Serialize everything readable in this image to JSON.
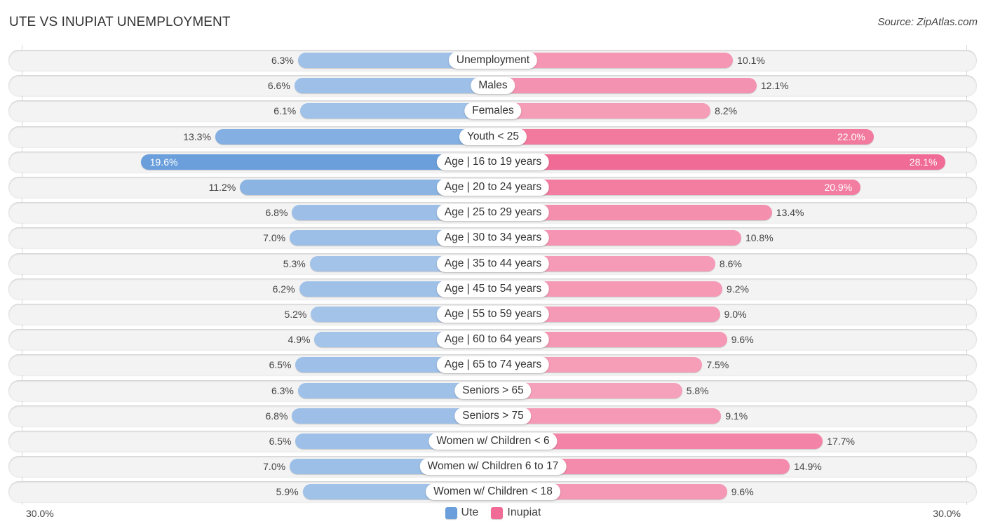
{
  "title": "UTE VS INUPIAT UNEMPLOYMENT",
  "source": "Source: ZipAtlas.com",
  "colors": {
    "ute": "#6a9fdc",
    "ute_light": "#a4c4e9",
    "inupiat": "#f06b95",
    "inupiat_light": "#f6a1bb"
  },
  "chart_data": {
    "type": "bar",
    "orientation": "horizontal-diverging",
    "title": "UTE VS INUPIAT UNEMPLOYMENT",
    "categories": [
      "Unemployment",
      "Males",
      "Females",
      "Youth < 25",
      "Age | 16 to 19 years",
      "Age | 20 to 24 years",
      "Age | 25 to 29 years",
      "Age | 30 to 34 years",
      "Age | 35 to 44 years",
      "Age | 45 to 54 years",
      "Age | 55 to 59 years",
      "Age | 60 to 64 years",
      "Age | 65 to 74 years",
      "Seniors > 65",
      "Seniors > 75",
      "Women w/ Children < 6",
      "Women w/ Children 6 to 17",
      "Women w/ Children < 18"
    ],
    "series": [
      {
        "name": "Ute",
        "side": "left",
        "values": [
          6.3,
          6.6,
          6.1,
          13.3,
          19.6,
          11.2,
          6.8,
          7.0,
          5.3,
          6.2,
          5.2,
          4.9,
          6.5,
          6.3,
          6.8,
          6.5,
          7.0,
          5.9
        ],
        "labels": [
          "6.3%",
          "6.6%",
          "6.1%",
          "13.3%",
          "19.6%",
          "11.2%",
          "6.8%",
          "7.0%",
          "5.3%",
          "6.2%",
          "5.2%",
          "4.9%",
          "6.5%",
          "6.3%",
          "6.8%",
          "6.5%",
          "7.0%",
          "5.9%"
        ]
      },
      {
        "name": "Inupiat",
        "side": "right",
        "values": [
          10.1,
          12.1,
          8.2,
          22.0,
          28.1,
          20.9,
          13.4,
          10.8,
          8.6,
          9.2,
          9.0,
          9.6,
          7.5,
          5.8,
          9.1,
          17.7,
          14.9,
          9.6
        ],
        "labels": [
          "10.1%",
          "12.1%",
          "8.2%",
          "22.0%",
          "28.1%",
          "20.9%",
          "13.4%",
          "10.8%",
          "8.6%",
          "9.2%",
          "9.0%",
          "9.6%",
          "7.5%",
          "5.8%",
          "9.1%",
          "17.7%",
          "14.9%",
          "9.6%"
        ]
      }
    ],
    "axis": {
      "min_label": "30.0%",
      "max_label": "30.0%",
      "range": [
        0,
        30
      ]
    },
    "legend": {
      "position": "bottom-center",
      "entries": [
        "Ute",
        "Inupiat"
      ]
    },
    "grid": false
  },
  "axis_labels": {
    "left": "30.0%",
    "right": "30.0%"
  },
  "legend": [
    {
      "name": "Ute",
      "color": "#6a9fdc"
    },
    {
      "name": "Inupiat",
      "color": "#f06b95"
    }
  ]
}
